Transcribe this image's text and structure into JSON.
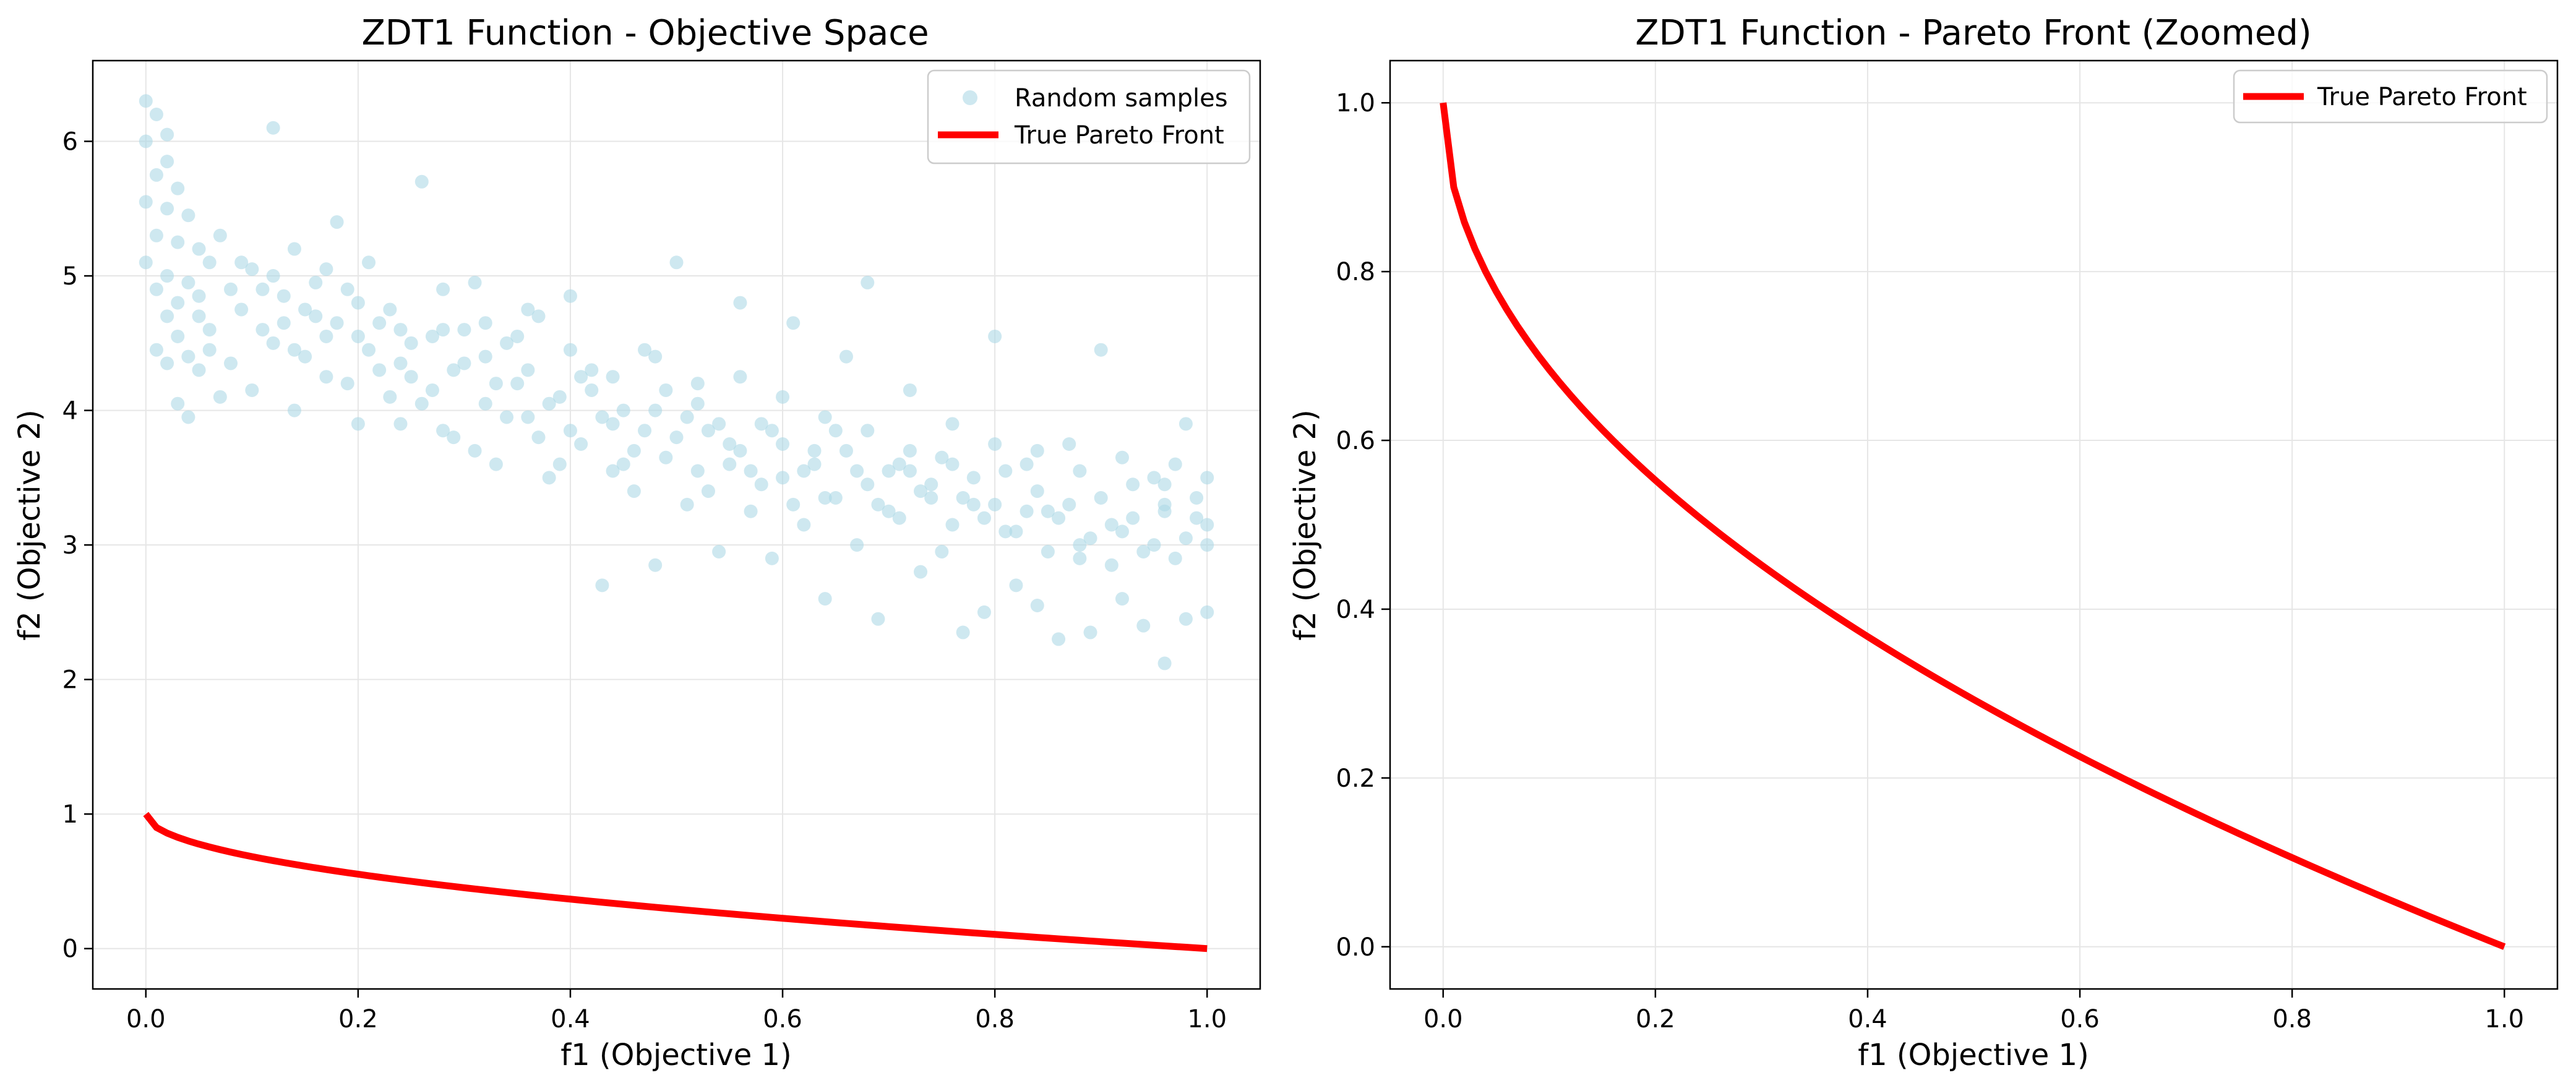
{
  "figure": {
    "background": "#ffffff"
  },
  "colors": {
    "scatter": "#add8e6",
    "pareto": "#ff0000",
    "grid": "#e6e6e6",
    "axis": "#000000"
  },
  "chart_data": [
    {
      "type": "scatter",
      "title": "ZDT1 Function - Objective Space",
      "xlabel": "f1 (Objective 1)",
      "ylabel": "f2 (Objective 2)",
      "xlim": [
        -0.05,
        1.05
      ],
      "ylim": [
        -0.3,
        6.6
      ],
      "xticks": [
        0.0,
        0.2,
        0.4,
        0.6,
        0.8,
        1.0
      ],
      "xtick_labels": [
        "0.0",
        "0.2",
        "0.4",
        "0.6",
        "0.8",
        "1.0"
      ],
      "yticks": [
        0,
        1,
        2,
        3,
        4,
        5,
        6
      ],
      "ytick_labels": [
        "0",
        "1",
        "2",
        "3",
        "4",
        "5",
        "6"
      ],
      "grid": true,
      "legend_position": "top-right",
      "legend": [
        "Random samples",
        "True Pareto Front"
      ],
      "series": [
        {
          "name": "Random samples",
          "kind": "scatter",
          "color": "#add8e6",
          "alpha": 0.6,
          "points": [
            [
              0.0,
              6.3
            ],
            [
              0.01,
              6.2
            ],
            [
              0.02,
              6.05
            ],
            [
              0.0,
              6.0
            ],
            [
              0.02,
              5.85
            ],
            [
              0.01,
              5.75
            ],
            [
              0.03,
              5.65
            ],
            [
              0.0,
              5.55
            ],
            [
              0.02,
              5.5
            ],
            [
              0.04,
              5.45
            ],
            [
              0.01,
              5.3
            ],
            [
              0.03,
              5.25
            ],
            [
              0.05,
              5.2
            ],
            [
              0.0,
              5.1
            ],
            [
              0.02,
              5.0
            ],
            [
              0.04,
              4.95
            ],
            [
              0.01,
              4.9
            ],
            [
              0.03,
              4.8
            ],
            [
              0.05,
              4.85
            ],
            [
              0.02,
              4.7
            ],
            [
              0.06,
              4.6
            ],
            [
              0.03,
              4.55
            ],
            [
              0.01,
              4.45
            ],
            [
              0.04,
              4.4
            ],
            [
              0.03,
              4.05
            ],
            [
              0.05,
              4.3
            ],
            [
              0.07,
              4.1
            ],
            [
              0.04,
              3.95
            ],
            [
              0.02,
              4.35
            ],
            [
              0.06,
              5.1
            ],
            [
              0.07,
              5.3
            ],
            [
              0.08,
              4.9
            ],
            [
              0.09,
              4.75
            ],
            [
              0.1,
              5.05
            ],
            [
              0.11,
              4.6
            ],
            [
              0.12,
              6.1
            ],
            [
              0.12,
              5.0
            ],
            [
              0.13,
              4.85
            ],
            [
              0.14,
              5.2
            ],
            [
              0.15,
              4.4
            ],
            [
              0.16,
              4.7
            ],
            [
              0.17,
              4.25
            ],
            [
              0.18,
              5.4
            ],
            [
              0.19,
              4.9
            ],
            [
              0.2,
              4.55
            ],
            [
              0.21,
              5.1
            ],
            [
              0.22,
              4.3
            ],
            [
              0.23,
              4.75
            ],
            [
              0.24,
              3.9
            ],
            [
              0.25,
              4.5
            ],
            [
              0.26,
              5.7
            ],
            [
              0.27,
              4.15
            ],
            [
              0.28,
              4.6
            ],
            [
              0.29,
              3.8
            ],
            [
              0.3,
              4.35
            ],
            [
              0.31,
              4.95
            ],
            [
              0.32,
              4.05
            ],
            [
              0.33,
              3.6
            ],
            [
              0.34,
              4.5
            ],
            [
              0.35,
              4.2
            ],
            [
              0.36,
              3.95
            ],
            [
              0.37,
              4.7
            ],
            [
              0.38,
              3.5
            ],
            [
              0.39,
              4.1
            ],
            [
              0.4,
              4.85
            ],
            [
              0.41,
              3.75
            ],
            [
              0.42,
              4.3
            ],
            [
              0.43,
              2.7
            ],
            [
              0.44,
              3.55
            ],
            [
              0.45,
              4.0
            ],
            [
              0.46,
              3.4
            ],
            [
              0.47,
              4.45
            ],
            [
              0.48,
              2.85
            ],
            [
              0.49,
              3.65
            ],
            [
              0.5,
              5.1
            ],
            [
              0.51,
              3.3
            ],
            [
              0.52,
              4.2
            ],
            [
              0.53,
              3.85
            ],
            [
              0.54,
              2.95
            ],
            [
              0.55,
              3.6
            ],
            [
              0.56,
              4.8
            ],
            [
              0.57,
              3.25
            ],
            [
              0.58,
              3.9
            ],
            [
              0.59,
              2.9
            ],
            [
              0.6,
              3.5
            ],
            [
              0.61,
              4.65
            ],
            [
              0.62,
              3.15
            ],
            [
              0.63,
              3.7
            ],
            [
              0.64,
              2.6
            ],
            [
              0.65,
              3.35
            ],
            [
              0.66,
              4.4
            ],
            [
              0.67,
              3.0
            ],
            [
              0.68,
              4.95
            ],
            [
              0.69,
              2.45
            ],
            [
              0.7,
              3.55
            ],
            [
              0.71,
              3.2
            ],
            [
              0.72,
              4.15
            ],
            [
              0.73,
              2.8
            ],
            [
              0.74,
              3.45
            ],
            [
              0.75,
              2.95
            ],
            [
              0.76,
              3.9
            ],
            [
              0.77,
              2.35
            ],
            [
              0.78,
              3.3
            ],
            [
              0.79,
              2.5
            ],
            [
              0.8,
              4.55
            ],
            [
              0.81,
              3.1
            ],
            [
              0.82,
              2.7
            ],
            [
              0.83,
              3.6
            ],
            [
              0.84,
              2.55
            ],
            [
              0.85,
              3.25
            ],
            [
              0.86,
              2.3
            ],
            [
              0.87,
              3.75
            ],
            [
              0.88,
              2.9
            ],
            [
              0.89,
              2.35
            ],
            [
              0.9,
              4.45
            ],
            [
              0.91,
              3.15
            ],
            [
              0.92,
              2.6
            ],
            [
              0.93,
              3.45
            ],
            [
              0.94,
              2.4
            ],
            [
              0.95,
              3.0
            ],
            [
              0.96,
              2.12
            ],
            [
              0.97,
              3.6
            ],
            [
              0.98,
              2.45
            ],
            [
              0.99,
              3.2
            ],
            [
              1.0,
              2.5
            ],
            [
              1.0,
              3.0
            ],
            [
              0.98,
              3.9
            ],
            [
              0.96,
              3.3
            ],
            [
              0.08,
              4.35
            ],
            [
              0.1,
              4.15
            ],
            [
              0.12,
              4.5
            ],
            [
              0.14,
              4.0
            ],
            [
              0.15,
              4.75
            ],
            [
              0.17,
              4.55
            ],
            [
              0.19,
              4.2
            ],
            [
              0.2,
              3.9
            ],
            [
              0.22,
              4.65
            ],
            [
              0.24,
              4.35
            ],
            [
              0.26,
              4.05
            ],
            [
              0.28,
              3.85
            ],
            [
              0.3,
              4.6
            ],
            [
              0.32,
              4.4
            ],
            [
              0.34,
              3.95
            ],
            [
              0.36,
              4.3
            ],
            [
              0.38,
              4.05
            ],
            [
              0.4,
              3.85
            ],
            [
              0.42,
              4.15
            ],
            [
              0.44,
              3.9
            ],
            [
              0.46,
              3.7
            ],
            [
              0.48,
              4.0
            ],
            [
              0.5,
              3.8
            ],
            [
              0.52,
              3.55
            ],
            [
              0.54,
              3.9
            ],
            [
              0.56,
              3.7
            ],
            [
              0.58,
              3.45
            ],
            [
              0.6,
              3.75
            ],
            [
              0.62,
              3.55
            ],
            [
              0.64,
              3.35
            ],
            [
              0.66,
              3.7
            ],
            [
              0.68,
              3.45
            ],
            [
              0.7,
              3.25
            ],
            [
              0.72,
              3.55
            ],
            [
              0.74,
              3.35
            ],
            [
              0.76,
              3.15
            ],
            [
              0.78,
              3.5
            ],
            [
              0.8,
              3.3
            ],
            [
              0.82,
              3.1
            ],
            [
              0.84,
              3.4
            ],
            [
              0.86,
              3.2
            ],
            [
              0.88,
              3.0
            ],
            [
              0.9,
              3.35
            ],
            [
              0.92,
              3.1
            ],
            [
              0.94,
              2.95
            ],
            [
              0.96,
              3.25
            ],
            [
              0.98,
              3.05
            ],
            [
              1.0,
              3.15
            ],
            [
              0.05,
              4.7
            ],
            [
              0.09,
              5.1
            ],
            [
              0.13,
              4.65
            ],
            [
              0.16,
              4.95
            ],
            [
              0.18,
              4.65
            ],
            [
              0.21,
              4.45
            ],
            [
              0.23,
              4.1
            ],
            [
              0.25,
              4.25
            ],
            [
              0.27,
              4.55
            ],
            [
              0.29,
              4.3
            ],
            [
              0.31,
              3.7
            ],
            [
              0.33,
              4.2
            ],
            [
              0.35,
              4.55
            ],
            [
              0.37,
              3.8
            ],
            [
              0.39,
              3.6
            ],
            [
              0.41,
              4.25
            ],
            [
              0.43,
              3.95
            ],
            [
              0.45,
              3.6
            ],
            [
              0.47,
              3.85
            ],
            [
              0.49,
              4.15
            ],
            [
              0.51,
              3.95
            ],
            [
              0.53,
              3.4
            ],
            [
              0.55,
              3.75
            ],
            [
              0.57,
              3.55
            ],
            [
              0.59,
              3.85
            ],
            [
              0.61,
              3.3
            ],
            [
              0.63,
              3.6
            ],
            [
              0.65,
              3.85
            ],
            [
              0.67,
              3.55
            ],
            [
              0.69,
              3.3
            ],
            [
              0.71,
              3.6
            ],
            [
              0.73,
              3.4
            ],
            [
              0.75,
              3.65
            ],
            [
              0.77,
              3.35
            ],
            [
              0.79,
              3.2
            ],
            [
              0.81,
              3.55
            ],
            [
              0.83,
              3.25
            ],
            [
              0.85,
              2.95
            ],
            [
              0.87,
              3.3
            ],
            [
              0.89,
              3.05
            ],
            [
              0.91,
              2.85
            ],
            [
              0.93,
              3.2
            ],
            [
              0.95,
              3.5
            ],
            [
              0.97,
              2.9
            ],
            [
              0.99,
              3.35
            ],
            [
              0.06,
              4.45
            ],
            [
              0.11,
              4.9
            ],
            [
              0.14,
              4.45
            ],
            [
              0.17,
              5.05
            ],
            [
              0.2,
              4.8
            ],
            [
              0.24,
              4.6
            ],
            [
              0.28,
              4.9
            ],
            [
              0.32,
              4.65
            ],
            [
              0.36,
              4.75
            ],
            [
              0.4,
              4.45
            ],
            [
              0.44,
              4.25
            ],
            [
              0.48,
              4.4
            ],
            [
              0.52,
              4.05
            ],
            [
              0.56,
              4.25
            ],
            [
              0.6,
              4.1
            ],
            [
              0.64,
              3.95
            ],
            [
              0.68,
              3.85
            ],
            [
              0.72,
              3.7
            ],
            [
              0.76,
              3.6
            ],
            [
              0.8,
              3.75
            ],
            [
              0.84,
              3.7
            ],
            [
              0.88,
              3.55
            ],
            [
              0.92,
              3.65
            ],
            [
              0.96,
              3.45
            ],
            [
              1.0,
              3.5
            ]
          ]
        },
        {
          "name": "True Pareto Front",
          "kind": "line",
          "color": "#ff0000",
          "function": "1 - sqrt(f1)",
          "x_range": [
            0,
            1
          ]
        }
      ]
    },
    {
      "type": "line",
      "title": "ZDT1 Function - Pareto Front (Zoomed)",
      "xlabel": "f1 (Objective 1)",
      "ylabel": "f2 (Objective 2)",
      "xlim": [
        -0.05,
        1.05
      ],
      "ylim": [
        -0.05,
        1.05
      ],
      "xticks": [
        0.0,
        0.2,
        0.4,
        0.6,
        0.8,
        1.0
      ],
      "xtick_labels": [
        "0.0",
        "0.2",
        "0.4",
        "0.6",
        "0.8",
        "1.0"
      ],
      "yticks": [
        0.0,
        0.2,
        0.4,
        0.6,
        0.8,
        1.0
      ],
      "ytick_labels": [
        "0.0",
        "0.2",
        "0.4",
        "0.6",
        "0.8",
        "1.0"
      ],
      "grid": true,
      "legend_position": "top-right",
      "legend": [
        "True Pareto Front"
      ],
      "series": [
        {
          "name": "True Pareto Front",
          "kind": "line",
          "color": "#ff0000",
          "function": "1 - sqrt(f1)",
          "x_range": [
            0,
            1
          ]
        }
      ]
    }
  ]
}
